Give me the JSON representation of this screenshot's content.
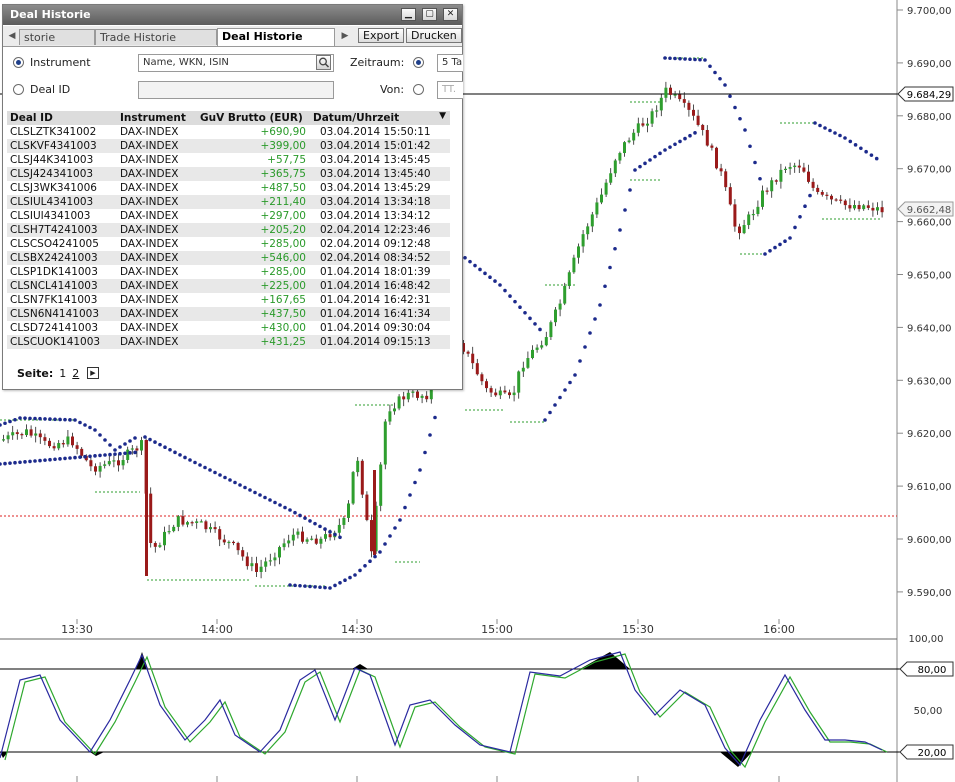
{
  "window": {
    "title": "Deal Historie",
    "tabs": [
      "storie",
      "Trade Historie",
      "Deal Historie"
    ],
    "buttons": {
      "export": "Export",
      "print": "Drucken"
    },
    "filter": {
      "instrument_label": "Instrument",
      "instrument_placeholder": "Name, WKN, ISIN",
      "deal_id_label": "Deal ID",
      "period_label": "Zeitraum:",
      "period_value": "5 Ta",
      "from_label": "Von:",
      "from_value": "TT."
    },
    "table": {
      "headers": [
        "Deal ID",
        "Instrument",
        "GuV Brutto (EUR)",
        "Datum/Uhrzeit"
      ],
      "rows": [
        [
          "CLSLZTK341002",
          "DAX-INDEX",
          "+690,90",
          "03.04.2014 15:50:11"
        ],
        [
          "CLSKVF4341003",
          "DAX-INDEX",
          "+399,00",
          "03.04.2014 15:01:42"
        ],
        [
          "CLSJ44K341003",
          "DAX-INDEX",
          "+57,75",
          "03.04.2014 13:45:45"
        ],
        [
          "CLSJ424341003",
          "DAX-INDEX",
          "+365,75",
          "03.04.2014 13:45:40"
        ],
        [
          "CLSJ3WK341006",
          "DAX-INDEX",
          "+487,50",
          "03.04.2014 13:45:29"
        ],
        [
          "CLSIUL4341003",
          "DAX-INDEX",
          "+211,40",
          "03.04.2014 13:34:18"
        ],
        [
          "CLSIUI4341003",
          "DAX-INDEX",
          "+297,00",
          "03.04.2014 13:34:12"
        ],
        [
          "CLSH7T4241003",
          "DAX-INDEX",
          "+205,20",
          "02.04.2014 12:23:46"
        ],
        [
          "CLSCSO4241005",
          "DAX-INDEX",
          "+285,00",
          "02.04.2014 09:12:48"
        ],
        [
          "CLSBX24241003",
          "DAX-INDEX",
          "+546,00",
          "02.04.2014 08:34:52"
        ],
        [
          "CLSP1DK141003",
          "DAX-INDEX",
          "+285,00",
          "01.04.2014 18:01:39"
        ],
        [
          "CLSNCL4141003",
          "DAX-INDEX",
          "+225,00",
          "01.04.2014 16:48:42"
        ],
        [
          "CLSN7FK141003",
          "DAX-INDEX",
          "+167,65",
          "01.04.2014 16:42:31"
        ],
        [
          "CLSN6N4141003",
          "DAX-INDEX",
          "+437,50",
          "01.04.2014 16:41:34"
        ],
        [
          "CLSD724141003",
          "DAX-INDEX",
          "+430,00",
          "01.04.2014 09:30:04"
        ],
        [
          "CLSCUOK141003",
          "DAX-INDEX",
          "+431,25",
          "01.04.2014 09:15:13"
        ]
      ]
    },
    "pager": {
      "label": "Seite:",
      "page1": "1",
      "page2": "2"
    }
  },
  "chart": {
    "price_axis": [
      "9.700,00",
      "9.690,00",
      "9.680,00",
      "9.670,00",
      "9.660,00",
      "9.650,00",
      "9.640,00",
      "9.630,00",
      "9.620,00",
      "9.610,00",
      "9.600,00",
      "9.590,00"
    ],
    "time_axis": [
      "13:30",
      "14:00",
      "14:30",
      "15:00",
      "15:30",
      "16:00"
    ],
    "flags": {
      "line_level": "9.684,29",
      "last_price": "9.662,48"
    },
    "osc_axis": [
      "100,00",
      "80,00",
      "50,00",
      "20,00"
    ],
    "colors": {
      "up": "#2e9e2e",
      "down": "#9a1a1a",
      "psar": "#1c2a8c",
      "osc_k": "#2a2aa0",
      "osc_d": "#2ea82e",
      "ref_line": "#d22"
    }
  }
}
